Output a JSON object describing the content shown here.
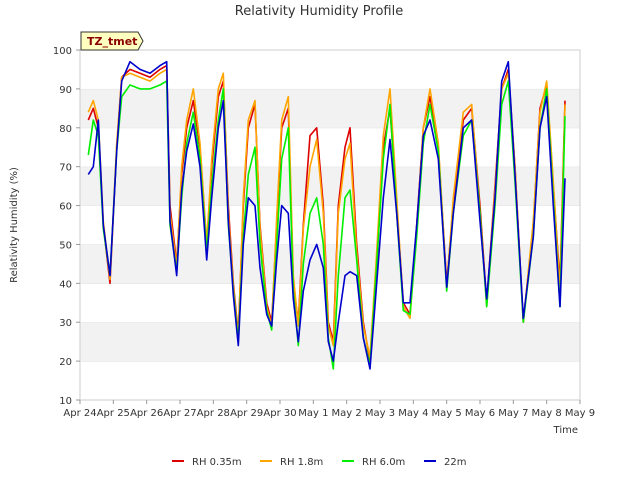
{
  "chart_data": {
    "type": "line",
    "title": "Relativity Humidity Profile",
    "xlabel": "Time",
    "ylabel": "Relativity Humidity (%)",
    "ylim": [
      10,
      100
    ],
    "xlim": [
      0,
      15
    ],
    "yticks": [
      10,
      20,
      30,
      40,
      50,
      60,
      70,
      80,
      90,
      100
    ],
    "xtick_labels": [
      "Apr 24",
      "Apr 25",
      "Apr 26",
      "Apr 27",
      "Apr 28",
      "Apr 29",
      "Apr 30",
      "May 1",
      "May 2",
      "May 3",
      "May 4",
      "May 5",
      "May 6",
      "May 7",
      "May 8",
      "May 9"
    ],
    "grid": "horizontal bands",
    "legend_position": "bottom",
    "annotation": "TZ_tmet",
    "x_unit": "days since Apr 24",
    "series": [
      {
        "name": "RH 0.35m",
        "color": "#dd0000",
        "x": [
          0.25,
          0.4,
          0.55,
          0.7,
          0.9,
          1.1,
          1.25,
          1.5,
          1.8,
          2.1,
          2.4,
          2.6,
          2.7,
          2.9,
          3.05,
          3.2,
          3.4,
          3.6,
          3.8,
          3.95,
          4.15,
          4.3,
          4.45,
          4.6,
          4.75,
          4.9,
          5.05,
          5.25,
          5.4,
          5.6,
          5.75,
          5.9,
          6.05,
          6.25,
          6.4,
          6.55,
          6.7,
          6.9,
          7.1,
          7.3,
          7.45,
          7.6,
          7.75,
          7.95,
          8.1,
          8.3,
          8.5,
          8.7,
          8.9,
          9.1,
          9.3,
          9.5,
          9.7,
          9.9,
          10.1,
          10.3,
          10.5,
          10.75,
          11.0,
          11.2,
          11.5,
          11.75,
          12.0,
          12.2,
          12.45,
          12.65,
          12.85,
          13.05,
          13.3,
          13.6,
          13.8,
          14.0,
          14.2,
          14.4,
          14.55
        ],
        "y": [
          82,
          85,
          80,
          55,
          40,
          75,
          93,
          95,
          94,
          93,
          95,
          96,
          60,
          45,
          68,
          80,
          87,
          75,
          50,
          70,
          88,
          92,
          60,
          40,
          27,
          60,
          80,
          86,
          55,
          35,
          30,
          55,
          80,
          85,
          40,
          30,
          55,
          78,
          80,
          60,
          30,
          25,
          60,
          75,
          80,
          50,
          30,
          20,
          45,
          75,
          85,
          60,
          35,
          32,
          55,
          80,
          88,
          75,
          40,
          60,
          82,
          85,
          60,
          35,
          65,
          90,
          95,
          70,
          30,
          55,
          85,
          91,
          65,
          40,
          87
        ]
      },
      {
        "name": "RH 1.8m",
        "color": "#ffa500",
        "x": [
          0.25,
          0.4,
          0.55,
          0.7,
          0.9,
          1.1,
          1.25,
          1.5,
          1.8,
          2.1,
          2.4,
          2.6,
          2.7,
          2.9,
          3.05,
          3.2,
          3.4,
          3.6,
          3.8,
          3.95,
          4.15,
          4.3,
          4.45,
          4.6,
          4.75,
          4.9,
          5.05,
          5.25,
          5.4,
          5.6,
          5.75,
          5.9,
          6.05,
          6.25,
          6.4,
          6.55,
          6.7,
          6.9,
          7.1,
          7.3,
          7.45,
          7.6,
          7.75,
          7.95,
          8.1,
          8.3,
          8.5,
          8.7,
          8.9,
          9.1,
          9.3,
          9.5,
          9.7,
          9.9,
          10.1,
          10.3,
          10.5,
          10.75,
          11.0,
          11.2,
          11.5,
          11.75,
          12.0,
          12.2,
          12.45,
          12.65,
          12.85,
          13.05,
          13.3,
          13.6,
          13.8,
          14.0,
          14.2,
          14.4,
          14.55
        ],
        "y": [
          84,
          87,
          82,
          56,
          41,
          76,
          93,
          94,
          93,
          92,
          94,
          95,
          58,
          44,
          70,
          82,
          90,
          76,
          50,
          72,
          90,
          94,
          58,
          39,
          26,
          62,
          82,
          87,
          54,
          34,
          29,
          57,
          82,
          88,
          42,
          29,
          54,
          70,
          77,
          58,
          29,
          24,
          58,
          72,
          76,
          48,
          29,
          21,
          48,
          78,
          90,
          62,
          34,
          31,
          54,
          80,
          90,
          76,
          39,
          62,
          84,
          86,
          58,
          34,
          64,
          90,
          94,
          70,
          30,
          56,
          84,
          92,
          66,
          38,
          86
        ]
      },
      {
        "name": "RH 6.0m",
        "color": "#00ee00",
        "x": [
          0.25,
          0.4,
          0.55,
          0.7,
          0.9,
          1.1,
          1.25,
          1.5,
          1.8,
          2.1,
          2.4,
          2.6,
          2.7,
          2.9,
          3.05,
          3.2,
          3.4,
          3.6,
          3.8,
          3.95,
          4.15,
          4.3,
          4.45,
          4.6,
          4.75,
          4.9,
          5.05,
          5.25,
          5.4,
          5.6,
          5.75,
          5.9,
          6.05,
          6.25,
          6.4,
          6.55,
          6.7,
          6.9,
          7.1,
          7.3,
          7.45,
          7.6,
          7.75,
          7.95,
          8.1,
          8.3,
          8.5,
          8.7,
          8.9,
          9.1,
          9.3,
          9.5,
          9.7,
          9.9,
          10.1,
          10.3,
          10.5,
          10.75,
          11.0,
          11.2,
          11.5,
          11.75,
          12.0,
          12.2,
          12.45,
          12.65,
          12.85,
          13.05,
          13.3,
          13.6,
          13.8,
          14.0,
          14.2,
          14.4,
          14.55
        ],
        "y": [
          73,
          82,
          78,
          54,
          42,
          74,
          88,
          91,
          90,
          90,
          91,
          92,
          55,
          43,
          62,
          76,
          84,
          72,
          48,
          65,
          82,
          90,
          55,
          38,
          25,
          52,
          68,
          75,
          50,
          33,
          28,
          50,
          72,
          80,
          38,
          24,
          45,
          58,
          62,
          50,
          26,
          18,
          42,
          62,
          64,
          46,
          26,
          19,
          45,
          72,
          86,
          58,
          33,
          32,
          52,
          76,
          86,
          74,
          38,
          58,
          78,
          82,
          58,
          34,
          60,
          86,
          92,
          66,
          30,
          52,
          80,
          90,
          62,
          34,
          83
        ]
      },
      {
        "name": "22m",
        "color": "#0000cc",
        "x": [
          0.25,
          0.4,
          0.55,
          0.7,
          0.9,
          1.1,
          1.25,
          1.5,
          1.8,
          2.1,
          2.4,
          2.6,
          2.7,
          2.9,
          3.05,
          3.2,
          3.4,
          3.6,
          3.8,
          3.95,
          4.15,
          4.3,
          4.45,
          4.6,
          4.75,
          4.9,
          5.05,
          5.25,
          5.4,
          5.6,
          5.75,
          5.9,
          6.05,
          6.25,
          6.4,
          6.55,
          6.7,
          6.9,
          7.1,
          7.3,
          7.45,
          7.6,
          7.75,
          7.95,
          8.1,
          8.3,
          8.5,
          8.7,
          8.9,
          9.1,
          9.3,
          9.5,
          9.7,
          9.9,
          10.1,
          10.3,
          10.5,
          10.75,
          11.0,
          11.2,
          11.5,
          11.75,
          12.0,
          12.2,
          12.45,
          12.65,
          12.85,
          13.05,
          13.3,
          13.6,
          13.8,
          14.0,
          14.2,
          14.4,
          14.55
        ],
        "y": [
          68,
          70,
          82,
          55,
          42,
          74,
          92,
          97,
          95,
          94,
          96,
          97,
          56,
          42,
          64,
          74,
          81,
          70,
          46,
          62,
          80,
          87,
          56,
          37,
          24,
          50,
          62,
          60,
          44,
          32,
          29,
          46,
          60,
          58,
          36,
          25,
          38,
          46,
          50,
          44,
          25,
          20,
          30,
          42,
          43,
          42,
          26,
          18,
          40,
          62,
          77,
          58,
          35,
          35,
          55,
          78,
          82,
          72,
          39,
          58,
          80,
          82,
          56,
          36,
          62,
          92,
          97,
          68,
          31,
          52,
          80,
          88,
          60,
          34,
          67
        ]
      }
    ]
  }
}
